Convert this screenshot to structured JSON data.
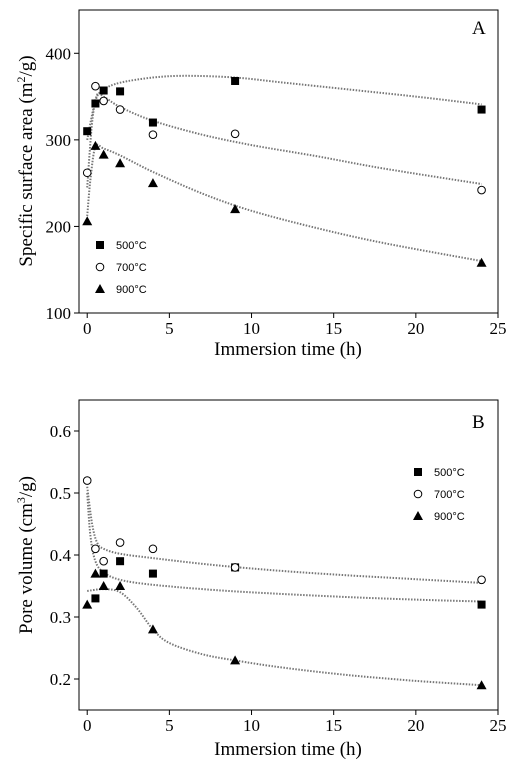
{
  "chart_data": [
    {
      "type": "scatter",
      "panel_label": "A",
      "xlabel": "Immersion time (h)",
      "ylabel": "Specific surface area (m²/g)",
      "ylabel_main": "Specific surface area (m",
      "ylabel_sup": "2",
      "ylabel_end": "/g)",
      "xlim": [
        -0.5,
        25
      ],
      "ylim": [
        100,
        450
      ],
      "xticks": [
        0,
        5,
        10,
        15,
        20,
        25
      ],
      "yticks": [
        100,
        200,
        300,
        400
      ],
      "legend_position": "bottom-left",
      "series": [
        {
          "name": "500°C",
          "marker": "square",
          "points": [
            [
              0,
              310
            ],
            [
              0.5,
              342
            ],
            [
              1,
              357
            ],
            [
              2,
              356
            ],
            [
              4,
              320
            ],
            [
              9,
              368
            ],
            [
              24,
              335
            ]
          ],
          "fit": [
            [
              0,
              300
            ],
            [
              0.5,
              345
            ],
            [
              1,
              358
            ],
            [
              2,
              366
            ],
            [
              4,
              372
            ],
            [
              6,
              374
            ],
            [
              9,
              372
            ],
            [
              12,
              366
            ],
            [
              16,
              358
            ],
            [
              20,
              350
            ],
            [
              24,
              341
            ]
          ]
        },
        {
          "name": "700°C",
          "marker": "circle",
          "points": [
            [
              0,
              262
            ],
            [
              0.5,
              362
            ],
            [
              1,
              345
            ],
            [
              2,
              335
            ],
            [
              4,
              306
            ],
            [
              9,
              307
            ],
            [
              24,
              242
            ]
          ],
          "fit": [
            [
              0,
              245
            ],
            [
              0.3,
              320
            ],
            [
              0.6,
              352
            ],
            [
              1,
              350
            ],
            [
              2,
              338
            ],
            [
              4,
              322
            ],
            [
              7,
              306
            ],
            [
              10,
              294
            ],
            [
              14,
              281
            ],
            [
              18,
              267
            ],
            [
              24,
              249
            ]
          ]
        },
        {
          "name": "900°C",
          "marker": "triangle",
          "points": [
            [
              0,
              206
            ],
            [
              0.5,
              293
            ],
            [
              1,
              283
            ],
            [
              2,
              273
            ],
            [
              4,
              250
            ],
            [
              9,
              220
            ],
            [
              24,
              158
            ]
          ],
          "fit": [
            [
              0,
              212
            ],
            [
              0.2,
              255
            ],
            [
              0.5,
              292
            ],
            [
              1,
              290
            ],
            [
              2,
              282
            ],
            [
              4,
              263
            ],
            [
              7,
              238
            ],
            [
              10,
              218
            ],
            [
              14,
              198
            ],
            [
              18,
              181
            ],
            [
              24,
              160
            ]
          ]
        }
      ]
    },
    {
      "type": "scatter",
      "panel_label": "B",
      "xlabel": "Immersion time (h)",
      "ylabel": "Pore volume (cm³/g)",
      "ylabel_main": "Pore volume (cm",
      "ylabel_sup": "3",
      "ylabel_end": "/g)",
      "xlim": [
        -0.5,
        25
      ],
      "ylim": [
        0.15,
        0.65
      ],
      "xticks": [
        0,
        5,
        10,
        15,
        20,
        25
      ],
      "yticks": [
        0.2,
        0.3,
        0.4,
        0.5,
        0.6
      ],
      "ytick_labels": [
        "0.2",
        "0.3",
        "0.4",
        "0.5",
        "0.6"
      ],
      "legend_position": "top-right",
      "series": [
        {
          "name": "500°C",
          "marker": "square",
          "points": [
            [
              0.5,
              0.33
            ],
            [
              1,
              0.37
            ],
            [
              2,
              0.39
            ],
            [
              4,
              0.37
            ],
            [
              9,
              0.38
            ],
            [
              24,
              0.32
            ]
          ],
          "fit": [
            [
              0,
              0.5
            ],
            [
              0.2,
              0.43
            ],
            [
              0.5,
              0.39
            ],
            [
              1,
              0.372
            ],
            [
              2,
              0.36
            ],
            [
              4,
              0.352
            ],
            [
              8,
              0.343
            ],
            [
              12,
              0.337
            ],
            [
              16,
              0.332
            ],
            [
              20,
              0.328
            ],
            [
              24,
              0.325
            ]
          ]
        },
        {
          "name": "700°C",
          "marker": "circle",
          "points": [
            [
              0,
              0.52
            ],
            [
              0.5,
              0.41
            ],
            [
              1,
              0.39
            ],
            [
              2,
              0.42
            ],
            [
              4,
              0.41
            ],
            [
              9,
              0.38
            ],
            [
              24,
              0.36
            ]
          ],
          "fit": [
            [
              0,
              0.51
            ],
            [
              0.3,
              0.45
            ],
            [
              0.6,
              0.42
            ],
            [
              1,
              0.41
            ],
            [
              2,
              0.402
            ],
            [
              4,
              0.395
            ],
            [
              8,
              0.383
            ],
            [
              12,
              0.374
            ],
            [
              16,
              0.367
            ],
            [
              20,
              0.361
            ],
            [
              24,
              0.355
            ]
          ]
        },
        {
          "name": "900°C",
          "marker": "triangle",
          "points": [
            [
              0,
              0.32
            ],
            [
              0.5,
              0.37
            ],
            [
              1,
              0.35
            ],
            [
              2,
              0.35
            ],
            [
              4,
              0.28
            ],
            [
              9,
              0.23
            ],
            [
              24,
              0.19
            ]
          ],
          "fit": [
            [
              0,
              0.342
            ],
            [
              1,
              0.345
            ],
            [
              2,
              0.34
            ],
            [
              3,
              0.315
            ],
            [
              4,
              0.28
            ],
            [
              5,
              0.258
            ],
            [
              7,
              0.24
            ],
            [
              9,
              0.23
            ],
            [
              12,
              0.218
            ],
            [
              16,
              0.206
            ],
            [
              20,
              0.197
            ],
            [
              24,
              0.19
            ]
          ]
        }
      ]
    }
  ]
}
